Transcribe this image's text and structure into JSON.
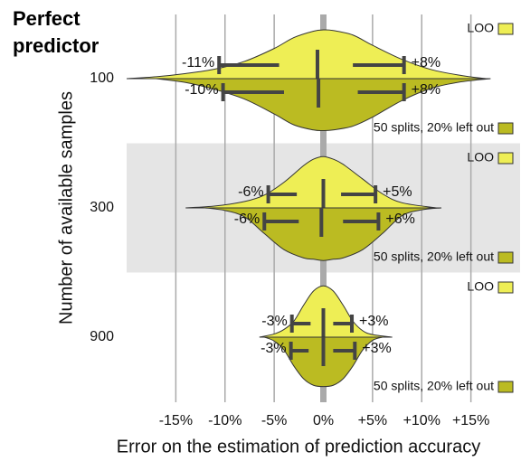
{
  "chart_data": {
    "type": "split-violin",
    "title": "Perfect predictor",
    "x_label": "Error on the estimation of prediction accuracy",
    "y_label": "Number of available samples",
    "categories": [
      "100",
      "300",
      "900"
    ],
    "xlim": [
      -20,
      20
    ],
    "xticks": [
      {
        "value": -15,
        "label": "-15%"
      },
      {
        "value": -10,
        "label": "-10%"
      },
      {
        "value": -5,
        "label": "-5%"
      },
      {
        "value": 0,
        "label": "0%"
      },
      {
        "value": 5,
        "label": "+5%"
      },
      {
        "value": 10,
        "label": "+10%"
      },
      {
        "value": 15,
        "label": "+15%"
      }
    ],
    "grid": true,
    "series": [
      {
        "name": "LOO",
        "color": "#eeee55",
        "violins": [
          {
            "x": [
              -20,
              -17,
              -14,
              -11,
              -8,
              -5,
              -3,
              -1,
              0,
              1,
              3,
              5,
              8,
              11,
              14,
              16.5
            ],
            "density": [
              0,
              0.03,
              0.08,
              0.15,
              0.27,
              0.47,
              0.64,
              0.74,
              0.76,
              0.75,
              0.68,
              0.52,
              0.3,
              0.14,
              0.05,
              0
            ],
            "range": [
              -10.6,
              8.2
            ],
            "range_labels": [
              "-11%",
              "+8%"
            ],
            "inner": [
              -4.5,
              3
            ],
            "median": -0.6
          },
          {
            "x": [
              -14,
              -11,
              -8,
              -6,
              -4,
              -2,
              -1,
              0,
              1,
              2,
              4,
              6,
              8,
              11.5
            ],
            "density": [
              0,
              0.03,
              0.1,
              0.2,
              0.4,
              0.66,
              0.76,
              0.8,
              0.76,
              0.68,
              0.45,
              0.22,
              0.08,
              0
            ],
            "range": [
              -5.6,
              5.3
            ],
            "range_labels": [
              "-6%",
              "+5%"
            ],
            "inner": [
              -2.7,
              1.8
            ],
            "median": 0
          },
          {
            "x": [
              -6.5,
              -5,
              -4,
              -3,
              -2,
              -1,
              0,
              1,
              2,
              3,
              4,
              5,
              7
            ],
            "density": [
              0,
              0.05,
              0.12,
              0.25,
              0.5,
              0.72,
              0.8,
              0.72,
              0.5,
              0.25,
              0.1,
              0.04,
              0
            ],
            "range": [
              -3.2,
              2.9
            ],
            "range_labels": [
              "-3%",
              "+3%"
            ],
            "inner": [
              -1.3,
              1
            ],
            "median": 0
          }
        ]
      },
      {
        "name": "50 splits, 20% left out",
        "color": "#bbbb22",
        "violins": [
          {
            "x": [
              -17,
              -14,
              -11,
              -8,
              -5,
              -3,
              -1,
              0,
              1,
              3,
              5,
              8,
              11,
              14,
              17
            ],
            "density": [
              0,
              0.06,
              0.17,
              0.32,
              0.55,
              0.72,
              0.8,
              0.81,
              0.8,
              0.74,
              0.6,
              0.34,
              0.15,
              0.05,
              0
            ],
            "range": [
              -10.2,
              8.2
            ],
            "range_labels": [
              "-10%",
              "+8%"
            ],
            "inner": [
              -4,
              3.5
            ],
            "median": -0.5
          },
          {
            "x": [
              -12,
              -10,
              -8,
              -6,
              -4,
              -2,
              -1,
              0,
              1,
              2,
              4,
              6,
              8,
              10,
              12
            ],
            "density": [
              0,
              0.04,
              0.14,
              0.4,
              0.65,
              0.78,
              0.8,
              0.82,
              0.8,
              0.78,
              0.65,
              0.4,
              0.12,
              0.03,
              0
            ],
            "range": [
              -6,
              5.6
            ],
            "range_labels": [
              "-6%",
              "+6%"
            ],
            "inner": [
              -2.5,
              2
            ],
            "median": -0.2
          },
          {
            "x": [
              -6,
              -5,
              -4,
              -3,
              -2,
              -1,
              0,
              1,
              2,
              3,
              4,
              5,
              6
            ],
            "density": [
              0,
              0.06,
              0.2,
              0.45,
              0.65,
              0.75,
              0.77,
              0.75,
              0.65,
              0.45,
              0.2,
              0.05,
              0
            ],
            "range": [
              -3.3,
              3.2
            ],
            "range_labels": [
              "-3%",
              "+3%"
            ],
            "inner": [
              -1.5,
              1
            ],
            "median": 0
          }
        ]
      }
    ]
  }
}
